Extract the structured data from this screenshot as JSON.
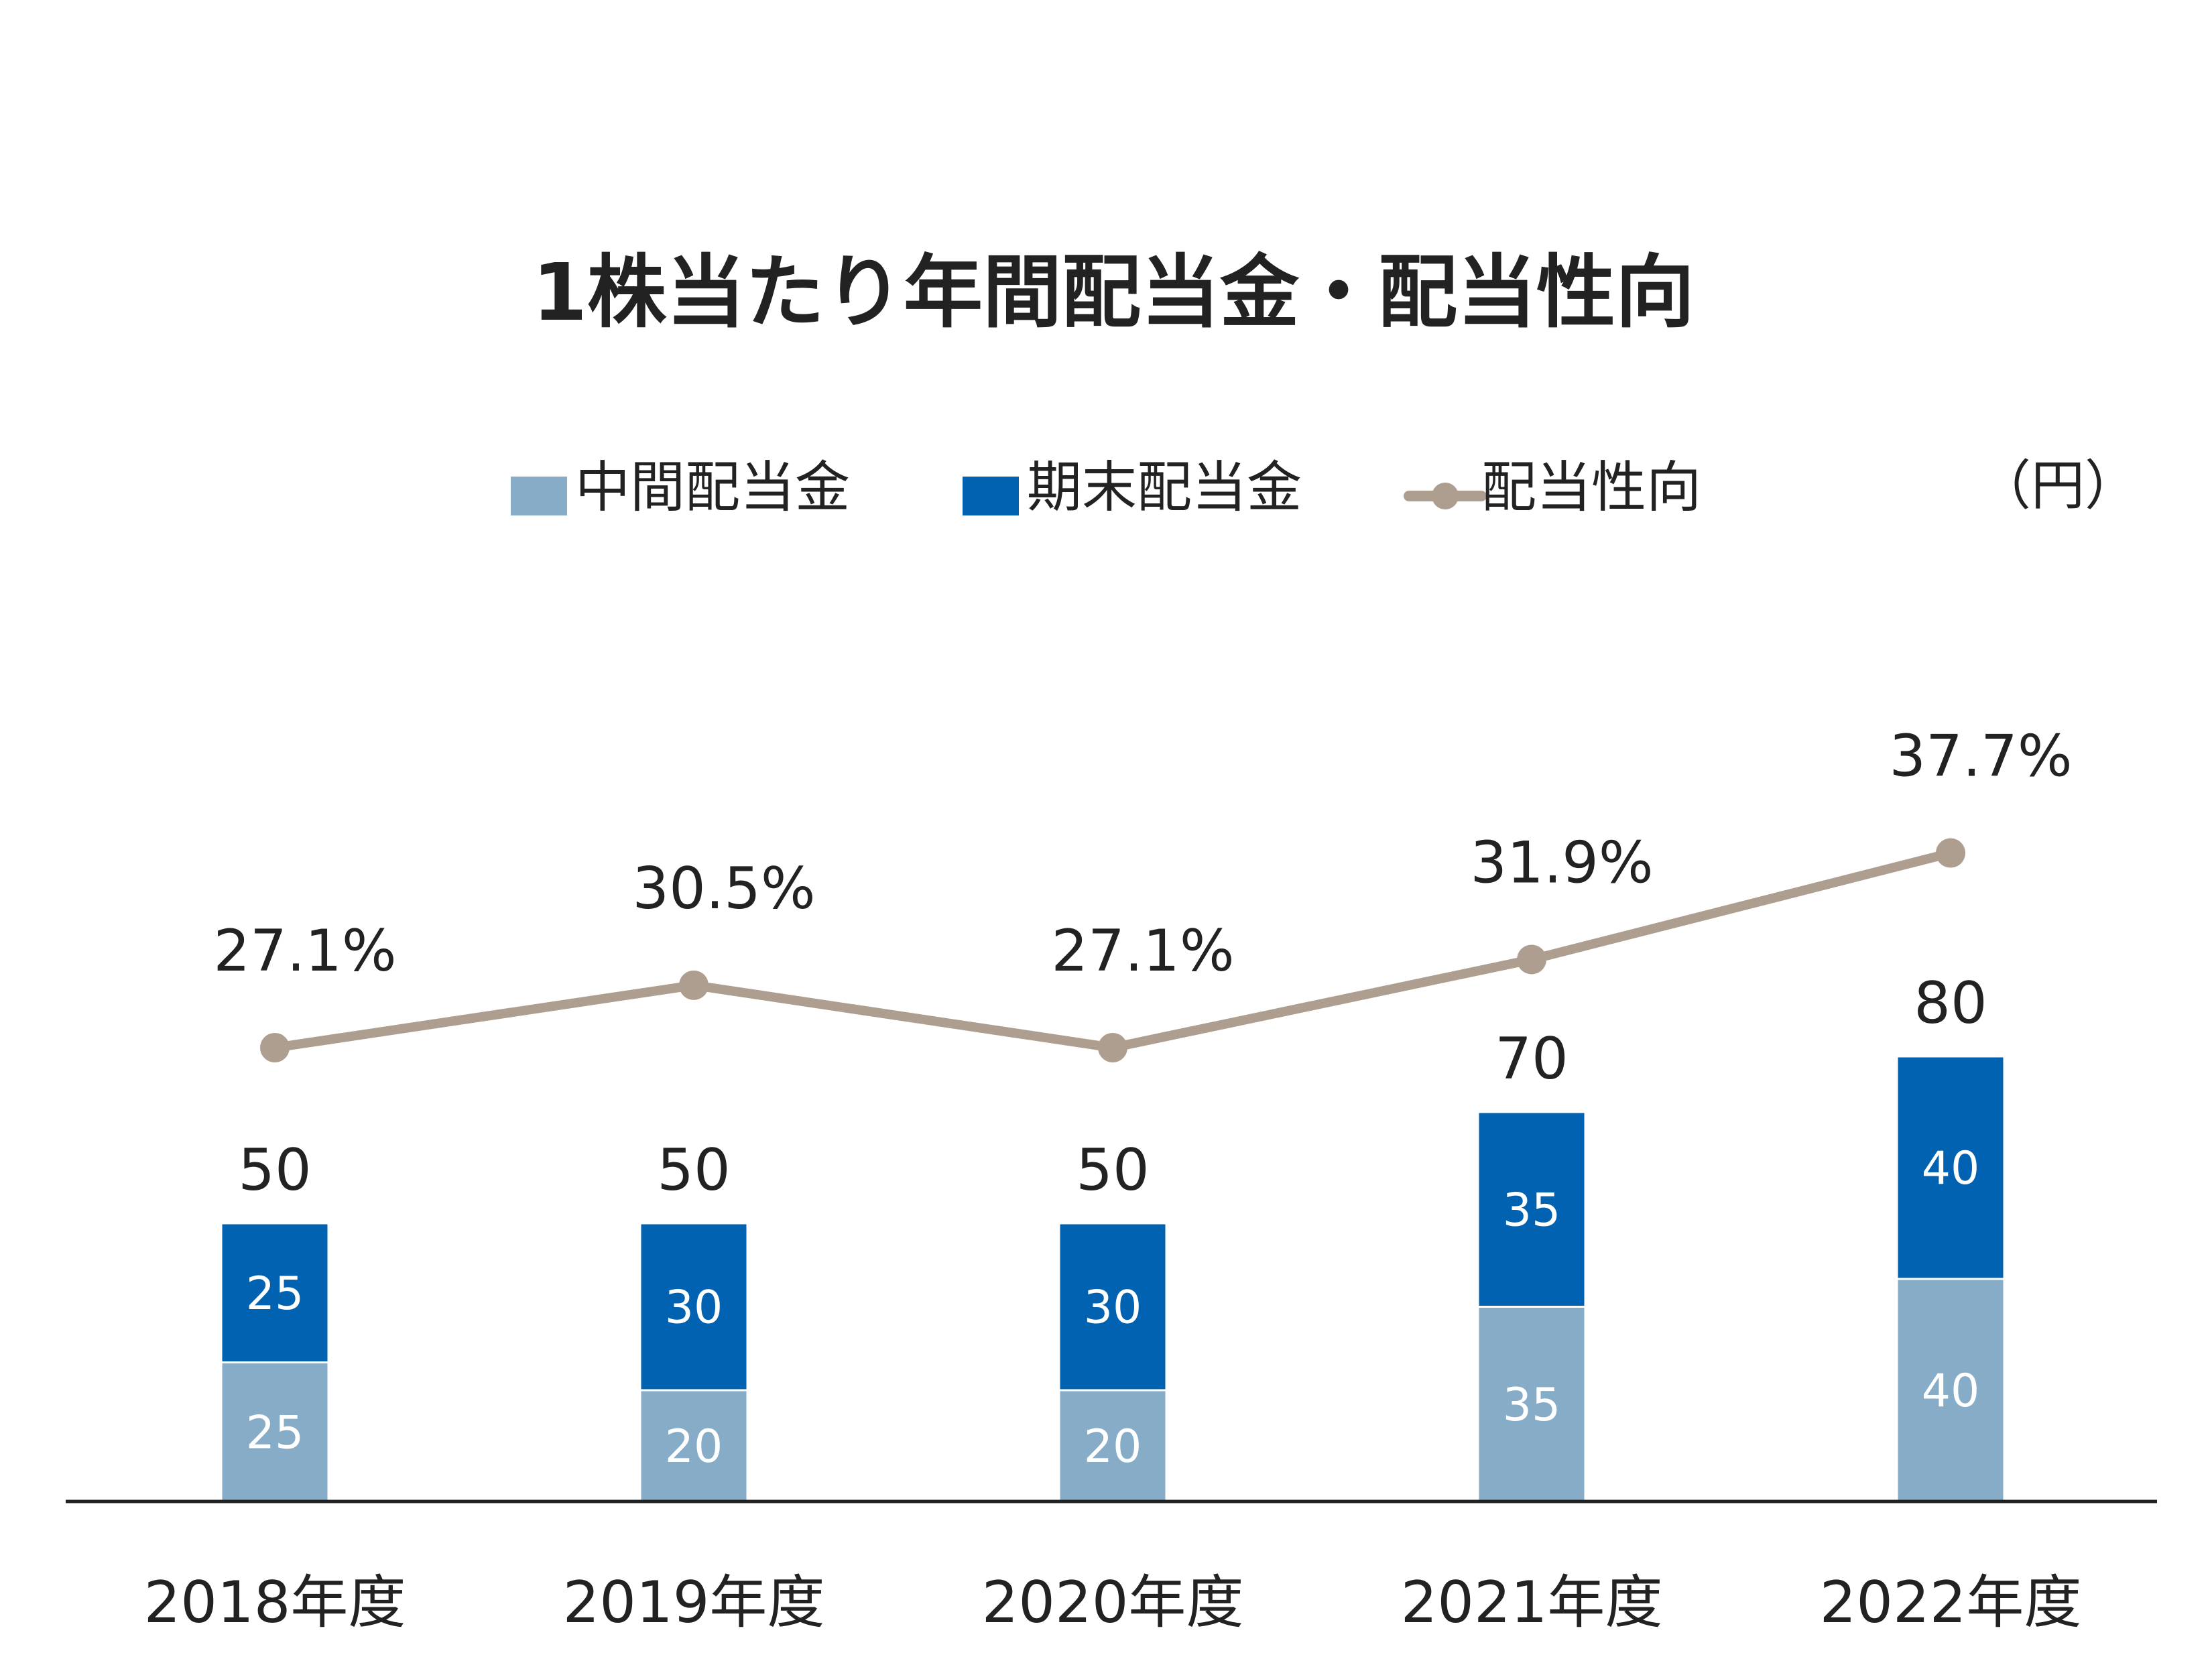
{
  "unit": "（円）",
  "colors": {
    "interim": "#87acc8",
    "final": "#0062b1",
    "ratio": "#ae9e8f",
    "axis": "#222222"
  },
  "chart_data": {
    "type": "bar",
    "stacked": true,
    "title": "1株当たり年間配当金・配当性向",
    "categories": [
      "2018年度",
      "2019年度",
      "2020年度",
      "2021年度",
      "2022年度"
    ],
    "series": [
      {
        "name": "中間配当金",
        "values": [
          25,
          20,
          20,
          35,
          40
        ]
      },
      {
        "name": "期末配当金",
        "values": [
          25,
          30,
          30,
          35,
          40
        ]
      }
    ],
    "totals": [
      50,
      50,
      50,
      70,
      80
    ],
    "line_series": {
      "name": "配当性向",
      "values": [
        27.1,
        30.5,
        27.1,
        31.9,
        37.7
      ],
      "labels": [
        "27.1%",
        "30.5%",
        "27.1%",
        "31.9%",
        "37.7%"
      ]
    },
    "legend_position": "top",
    "grid": false
  }
}
